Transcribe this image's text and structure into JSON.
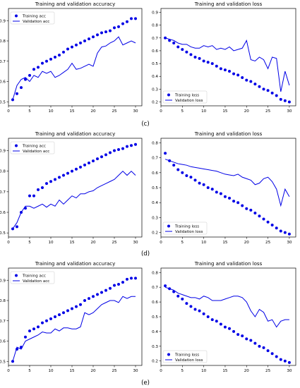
{
  "colors": {
    "series": "#0000e6",
    "axis": "#000000"
  },
  "chart_data": [
    {
      "type": "scatter",
      "title": "Training and validation accuracy",
      "xlim": [
        0,
        31.5
      ],
      "ylim": [
        0.48,
        0.96
      ],
      "xticks": [
        0,
        5,
        10,
        15,
        20,
        25,
        30
      ],
      "yticks": [
        0.5,
        0.6,
        0.7,
        0.8,
        0.9
      ],
      "legend_position": "upper-left",
      "series": [
        {
          "name": "Training acc",
          "style": "markers",
          "x": [
            1,
            2,
            3,
            4,
            5,
            6,
            7,
            8,
            9,
            10,
            11,
            12,
            13,
            14,
            15,
            16,
            17,
            18,
            19,
            20,
            21,
            22,
            23,
            24,
            25,
            26,
            27,
            28,
            29,
            30
          ],
          "y": [
            0.51,
            0.54,
            0.57,
            0.61,
            0.63,
            0.66,
            0.67,
            0.69,
            0.7,
            0.71,
            0.72,
            0.73,
            0.745,
            0.76,
            0.77,
            0.78,
            0.79,
            0.8,
            0.81,
            0.82,
            0.83,
            0.84,
            0.845,
            0.85,
            0.865,
            0.87,
            0.885,
            0.895,
            0.91,
            0.91
          ]
        },
        {
          "name": "Validation acc",
          "style": "line",
          "x": [
            1,
            2,
            3,
            4,
            5,
            6,
            7,
            8,
            9,
            10,
            11,
            12,
            13,
            14,
            15,
            16,
            17,
            18,
            19,
            20,
            21,
            22,
            23,
            24,
            25,
            26,
            27,
            28,
            29,
            30
          ],
          "y": [
            0.51,
            0.58,
            0.61,
            0.62,
            0.6,
            0.63,
            0.62,
            0.65,
            0.64,
            0.65,
            0.62,
            0.63,
            0.645,
            0.66,
            0.69,
            0.66,
            0.665,
            0.675,
            0.685,
            0.675,
            0.74,
            0.77,
            0.775,
            0.79,
            0.8,
            0.82,
            0.78,
            0.79,
            0.8,
            0.79
          ]
        }
      ]
    },
    {
      "type": "scatter",
      "title": "Training and validation loss",
      "xlim": [
        0,
        31.5
      ],
      "ylim": [
        0.17,
        0.93
      ],
      "xticks": [
        0,
        5,
        10,
        15,
        20,
        25,
        30
      ],
      "yticks": [
        0.2,
        0.3,
        0.4,
        0.5,
        0.6,
        0.7,
        0.8,
        0.9
      ],
      "legend_position": "lower-left",
      "series": [
        {
          "name": "Training loss",
          "style": "markers",
          "x": [
            1,
            2,
            3,
            4,
            5,
            6,
            7,
            8,
            9,
            10,
            11,
            12,
            13,
            14,
            15,
            16,
            17,
            18,
            19,
            20,
            21,
            22,
            23,
            24,
            25,
            26,
            27,
            28,
            29,
            30
          ],
          "y": [
            0.7,
            0.68,
            0.66,
            0.63,
            0.61,
            0.59,
            0.57,
            0.55,
            0.54,
            0.52,
            0.51,
            0.5,
            0.48,
            0.46,
            0.45,
            0.44,
            0.42,
            0.41,
            0.39,
            0.37,
            0.36,
            0.34,
            0.32,
            0.3,
            0.29,
            0.27,
            0.25,
            0.22,
            0.21,
            0.2
          ]
        },
        {
          "name": "Validation loss",
          "style": "line",
          "x": [
            1,
            2,
            3,
            4,
            5,
            6,
            7,
            8,
            9,
            10,
            11,
            12,
            13,
            14,
            15,
            16,
            17,
            18,
            19,
            20,
            21,
            22,
            23,
            24,
            25,
            26,
            27,
            28,
            29,
            30
          ],
          "y": [
            0.7,
            0.69,
            0.68,
            0.66,
            0.65,
            0.65,
            0.63,
            0.62,
            0.62,
            0.64,
            0.63,
            0.64,
            0.61,
            0.62,
            0.61,
            0.63,
            0.6,
            0.61,
            0.62,
            0.68,
            0.53,
            0.52,
            0.55,
            0.53,
            0.46,
            0.55,
            0.54,
            0.28,
            0.44,
            0.33
          ]
        }
      ]
    },
    {
      "type": "scatter",
      "title": "Training and validation accuracy",
      "xlim": [
        0,
        31.5
      ],
      "ylim": [
        0.48,
        0.96
      ],
      "xticks": [
        0,
        5,
        10,
        15,
        20,
        25,
        30
      ],
      "yticks": [
        0.5,
        0.6,
        0.7,
        0.8,
        0.9
      ],
      "legend_position": "upper-left",
      "series": [
        {
          "name": "Training acc",
          "style": "markers",
          "x": [
            1,
            2,
            3,
            4,
            5,
            6,
            7,
            8,
            9,
            10,
            11,
            12,
            13,
            14,
            15,
            16,
            17,
            18,
            19,
            20,
            21,
            22,
            23,
            24,
            25,
            26,
            27,
            28,
            29,
            30
          ],
          "y": [
            0.52,
            0.53,
            0.6,
            0.62,
            0.68,
            0.68,
            0.71,
            0.72,
            0.74,
            0.75,
            0.76,
            0.77,
            0.78,
            0.79,
            0.8,
            0.81,
            0.82,
            0.83,
            0.84,
            0.85,
            0.86,
            0.87,
            0.88,
            0.89,
            0.9,
            0.905,
            0.91,
            0.92,
            0.925,
            0.93
          ]
        },
        {
          "name": "Validation acc",
          "style": "line",
          "x": [
            1,
            2,
            3,
            4,
            5,
            6,
            7,
            8,
            9,
            10,
            11,
            12,
            13,
            14,
            15,
            16,
            17,
            18,
            19,
            20,
            21,
            22,
            23,
            24,
            25,
            26,
            27,
            28,
            29,
            30
          ],
          "y": [
            0.52,
            0.55,
            0.6,
            0.63,
            0.63,
            0.62,
            0.63,
            0.64,
            0.625,
            0.64,
            0.63,
            0.66,
            0.64,
            0.66,
            0.68,
            0.67,
            0.69,
            0.69,
            0.7,
            0.705,
            0.72,
            0.73,
            0.74,
            0.75,
            0.76,
            0.78,
            0.8,
            0.78,
            0.8,
            0.78
          ]
        }
      ]
    },
    {
      "type": "scatter",
      "title": "Training and validation loss",
      "xlim": [
        0,
        31.5
      ],
      "ylim": [
        0.17,
        0.83
      ],
      "xticks": [
        0,
        5,
        10,
        15,
        20,
        25,
        30
      ],
      "yticks": [
        0.2,
        0.3,
        0.4,
        0.5,
        0.6,
        0.7,
        0.8
      ],
      "legend_position": "lower-left",
      "series": [
        {
          "name": "Training loss",
          "style": "markers",
          "x": [
            1,
            2,
            3,
            4,
            5,
            6,
            7,
            8,
            9,
            10,
            11,
            12,
            13,
            14,
            15,
            16,
            17,
            18,
            19,
            20,
            21,
            22,
            23,
            24,
            25,
            26,
            27,
            28,
            29,
            30
          ],
          "y": [
            0.73,
            0.68,
            0.65,
            0.62,
            0.6,
            0.58,
            0.57,
            0.55,
            0.53,
            0.52,
            0.5,
            0.49,
            0.47,
            0.46,
            0.44,
            0.43,
            0.41,
            0.4,
            0.38,
            0.36,
            0.35,
            0.33,
            0.31,
            0.29,
            0.27,
            0.25,
            0.23,
            0.21,
            0.2,
            0.19
          ]
        },
        {
          "name": "Validation loss",
          "style": "line",
          "x": [
            1,
            2,
            3,
            4,
            5,
            6,
            7,
            8,
            9,
            10,
            11,
            12,
            13,
            14,
            15,
            16,
            17,
            18,
            19,
            20,
            21,
            22,
            23,
            24,
            25,
            26,
            27,
            28,
            29,
            30
          ],
          "y": [
            0.69,
            0.68,
            0.67,
            0.66,
            0.655,
            0.65,
            0.64,
            0.635,
            0.63,
            0.625,
            0.62,
            0.615,
            0.61,
            0.6,
            0.59,
            0.585,
            0.58,
            0.59,
            0.57,
            0.56,
            0.55,
            0.52,
            0.53,
            0.56,
            0.57,
            0.54,
            0.49,
            0.38,
            0.49,
            0.44
          ]
        }
      ]
    },
    {
      "type": "scatter",
      "title": "Training and validation accuracy",
      "xlim": [
        0,
        31.5
      ],
      "ylim": [
        0.48,
        0.96
      ],
      "xticks": [
        0,
        5,
        10,
        15,
        20,
        25,
        30
      ],
      "yticks": [
        0.5,
        0.6,
        0.7,
        0.8,
        0.9
      ],
      "legend_position": "upper-left",
      "series": [
        {
          "name": "Training acc",
          "style": "markers",
          "x": [
            1,
            2,
            3,
            4,
            5,
            6,
            7,
            8,
            9,
            10,
            11,
            12,
            13,
            14,
            15,
            16,
            17,
            18,
            19,
            20,
            21,
            22,
            23,
            24,
            25,
            26,
            27,
            28,
            29,
            30
          ],
          "y": [
            0.5,
            0.56,
            0.57,
            0.62,
            0.65,
            0.66,
            0.67,
            0.69,
            0.7,
            0.71,
            0.72,
            0.73,
            0.74,
            0.75,
            0.76,
            0.77,
            0.78,
            0.8,
            0.81,
            0.82,
            0.83,
            0.84,
            0.85,
            0.86,
            0.875,
            0.88,
            0.89,
            0.905,
            0.91,
            0.91
          ]
        },
        {
          "name": "Validation acc",
          "style": "line",
          "x": [
            1,
            2,
            3,
            4,
            5,
            6,
            7,
            8,
            9,
            10,
            11,
            12,
            13,
            14,
            15,
            16,
            17,
            18,
            19,
            20,
            21,
            22,
            23,
            24,
            25,
            26,
            27,
            28,
            29,
            30
          ],
          "y": [
            0.5,
            0.57,
            0.56,
            0.6,
            0.61,
            0.62,
            0.63,
            0.645,
            0.64,
            0.64,
            0.66,
            0.65,
            0.665,
            0.665,
            0.66,
            0.66,
            0.67,
            0.74,
            0.73,
            0.74,
            0.76,
            0.78,
            0.79,
            0.8,
            0.8,
            0.79,
            0.82,
            0.81,
            0.82,
            0.82
          ]
        }
      ]
    },
    {
      "type": "scatter",
      "title": "Training and validation loss",
      "xlim": [
        0,
        31.5
      ],
      "ylim": [
        0.17,
        0.83
      ],
      "xticks": [
        0,
        5,
        10,
        15,
        20,
        25,
        30
      ],
      "yticks": [
        0.2,
        0.3,
        0.4,
        0.5,
        0.6,
        0.7,
        0.8
      ],
      "legend_position": "lower-left",
      "series": [
        {
          "name": "Training loss",
          "style": "markers",
          "x": [
            1,
            2,
            3,
            4,
            5,
            6,
            7,
            8,
            9,
            10,
            11,
            12,
            13,
            14,
            15,
            16,
            17,
            18,
            19,
            20,
            21,
            22,
            23,
            24,
            25,
            26,
            27,
            28,
            29,
            30
          ],
          "y": [
            0.71,
            0.69,
            0.67,
            0.64,
            0.62,
            0.59,
            0.57,
            0.55,
            0.54,
            0.52,
            0.5,
            0.48,
            0.47,
            0.45,
            0.43,
            0.42,
            0.4,
            0.38,
            0.37,
            0.35,
            0.34,
            0.32,
            0.3,
            0.29,
            0.27,
            0.25,
            0.23,
            0.21,
            0.2,
            0.19
          ]
        },
        {
          "name": "Validation loss",
          "style": "line",
          "x": [
            1,
            2,
            3,
            4,
            5,
            6,
            7,
            8,
            9,
            10,
            11,
            12,
            13,
            14,
            15,
            16,
            17,
            18,
            19,
            20,
            21,
            22,
            23,
            24,
            25,
            26,
            27,
            28,
            29,
            30
          ],
          "y": [
            0.7,
            0.69,
            0.68,
            0.66,
            0.65,
            0.64,
            0.63,
            0.63,
            0.62,
            0.64,
            0.63,
            0.61,
            0.61,
            0.61,
            0.62,
            0.63,
            0.64,
            0.64,
            0.63,
            0.6,
            0.54,
            0.5,
            0.55,
            0.53,
            0.47,
            0.48,
            0.43,
            0.47,
            0.48,
            0.48
          ]
        }
      ]
    }
  ],
  "captions": [
    "(c)",
    "(d)",
    "(e)"
  ]
}
